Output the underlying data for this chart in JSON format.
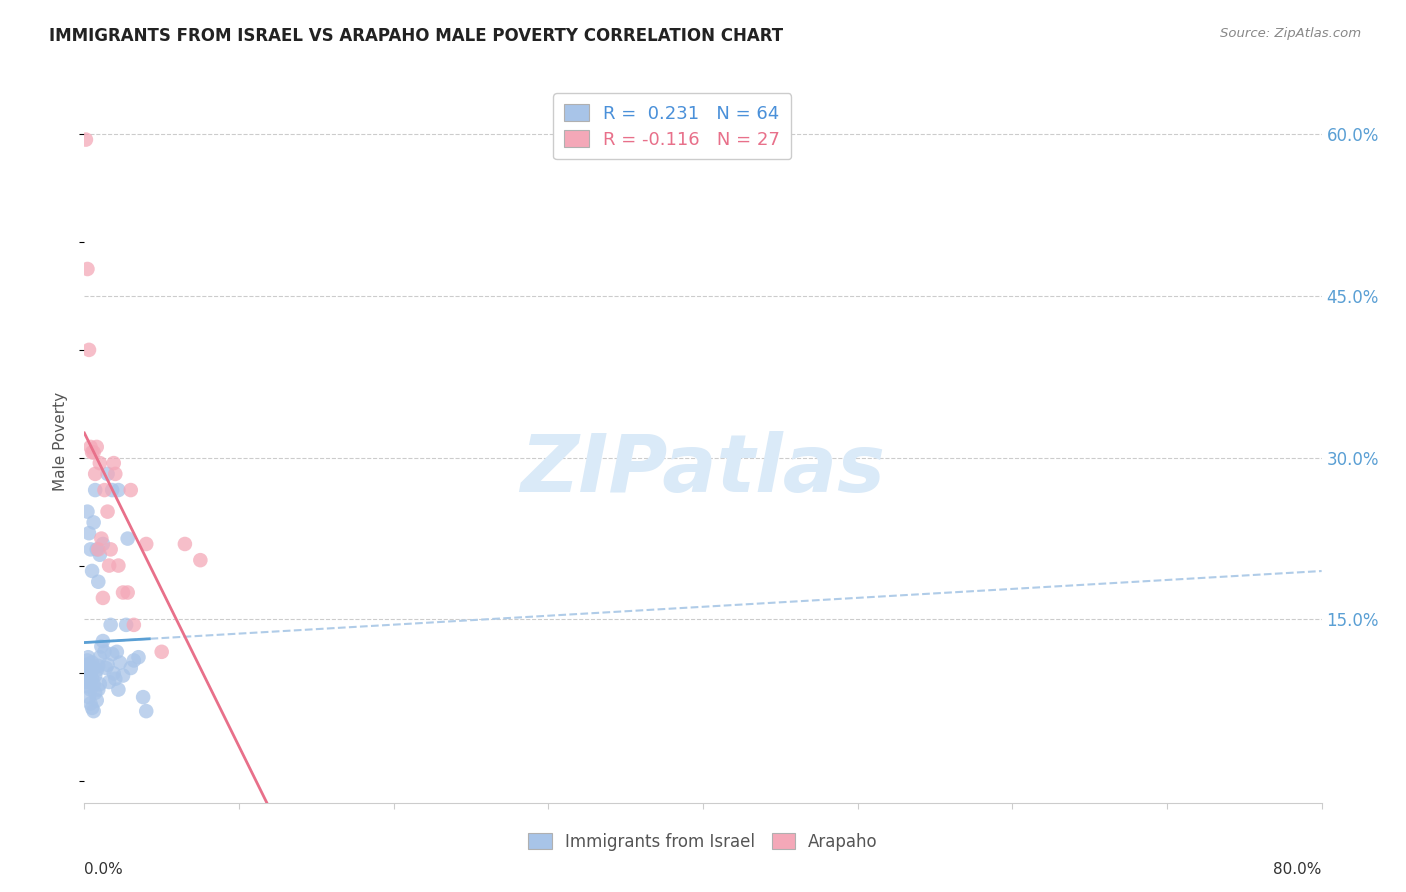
{
  "title": "IMMIGRANTS FROM ISRAEL VS ARAPAHO MALE POVERTY CORRELATION CHART",
  "source": "Source: ZipAtlas.com",
  "ylabel": "Male Poverty",
  "right_yticks": [
    "60.0%",
    "45.0%",
    "30.0%",
    "15.0%"
  ],
  "right_ytick_vals": [
    0.6,
    0.45,
    0.3,
    0.15
  ],
  "legend_blue_r": "0.231",
  "legend_blue_n": "64",
  "legend_pink_r": "-0.116",
  "legend_pink_n": "27",
  "blue_scatter_color": "#a8c4e8",
  "pink_scatter_color": "#f4a8b8",
  "blue_line_color": "#5a9fd4",
  "pink_line_color": "#e8708a",
  "dashed_line_color": "#b0cce8",
  "watermark_color": "#daeaf8",
  "xlim": [
    0.0,
    0.8
  ],
  "ylim": [
    -0.02,
    0.65
  ],
  "blue_points_x": [
    0.0005,
    0.001,
    0.001,
    0.0015,
    0.0015,
    0.002,
    0.002,
    0.0025,
    0.0025,
    0.003,
    0.003,
    0.003,
    0.0035,
    0.004,
    0.004,
    0.004,
    0.005,
    0.005,
    0.005,
    0.006,
    0.006,
    0.006,
    0.007,
    0.007,
    0.008,
    0.008,
    0.009,
    0.009,
    0.01,
    0.01,
    0.011,
    0.012,
    0.013,
    0.014,
    0.015,
    0.016,
    0.017,
    0.018,
    0.019,
    0.02,
    0.021,
    0.022,
    0.023,
    0.025,
    0.027,
    0.03,
    0.032,
    0.035,
    0.038,
    0.04,
    0.002,
    0.003,
    0.004,
    0.005,
    0.006,
    0.007,
    0.008,
    0.009,
    0.01,
    0.012,
    0.015,
    0.018,
    0.022,
    0.028
  ],
  "blue_points_y": [
    0.1,
    0.105,
    0.095,
    0.108,
    0.092,
    0.112,
    0.098,
    0.115,
    0.088,
    0.103,
    0.095,
    0.078,
    0.107,
    0.1,
    0.085,
    0.072,
    0.11,
    0.095,
    0.068,
    0.105,
    0.09,
    0.065,
    0.098,
    0.082,
    0.103,
    0.075,
    0.107,
    0.085,
    0.115,
    0.09,
    0.125,
    0.13,
    0.12,
    0.105,
    0.108,
    0.092,
    0.145,
    0.118,
    0.1,
    0.095,
    0.12,
    0.085,
    0.11,
    0.098,
    0.145,
    0.105,
    0.112,
    0.115,
    0.078,
    0.065,
    0.25,
    0.23,
    0.215,
    0.195,
    0.24,
    0.27,
    0.215,
    0.185,
    0.21,
    0.22,
    0.285,
    0.27,
    0.27,
    0.225
  ],
  "pink_points_x": [
    0.001,
    0.002,
    0.003,
    0.004,
    0.005,
    0.006,
    0.007,
    0.008,
    0.009,
    0.01,
    0.011,
    0.013,
    0.015,
    0.017,
    0.019,
    0.022,
    0.025,
    0.028,
    0.032,
    0.04,
    0.05,
    0.065,
    0.075,
    0.03,
    0.02,
    0.012,
    0.016
  ],
  "pink_points_y": [
    0.595,
    0.475,
    0.4,
    0.31,
    0.305,
    0.305,
    0.285,
    0.31,
    0.215,
    0.295,
    0.225,
    0.27,
    0.25,
    0.215,
    0.295,
    0.2,
    0.175,
    0.175,
    0.145,
    0.22,
    0.12,
    0.22,
    0.205,
    0.27,
    0.285,
    0.17,
    0.2
  ]
}
